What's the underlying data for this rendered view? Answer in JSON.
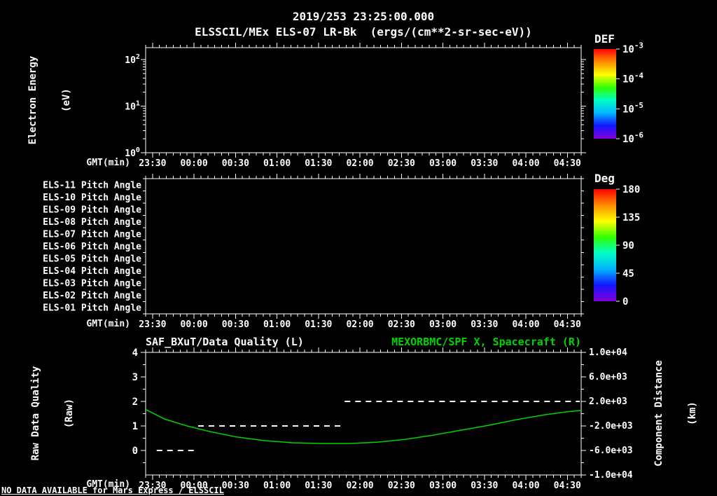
{
  "header": {
    "timestamp": "2019/253 23:25:00.000",
    "title": "ELSSCIL/MEx ELS-07 LR-Bk  (ergs/(cm**2-sr-sec-eV))"
  },
  "footer": {
    "message": "NO DATA AVAILABLE for Mars Express / ELSSCIL"
  },
  "colors": {
    "background": "#000000",
    "foreground": "#ffffff",
    "green": "#00d400",
    "rainbow_top_to_bottom": [
      "#ff0000",
      "#ff8c00",
      "#ffff00",
      "#30ff00",
      "#00ffc8",
      "#00b4ff",
      "#1414ff",
      "#8200dc"
    ]
  },
  "time_axis": {
    "label": "GMT(min)",
    "range_minutes": [
      0,
      315
    ],
    "minor_tick_step_minutes": 5,
    "major_ticks_minutes": [
      5,
      35,
      65,
      95,
      125,
      155,
      185,
      215,
      245,
      275,
      305
    ],
    "major_tick_labels": [
      "23:30",
      "00:00",
      "00:30",
      "01:00",
      "01:30",
      "02:00",
      "02:30",
      "03:00",
      "03:30",
      "04:00",
      "04:30"
    ]
  },
  "chart_data": [
    {
      "type": "heatmap",
      "name": "energy_spectrogram",
      "title": "ELSSCIL/MEx ELS-07 LR-Bk (ergs/(cm**2-sr-sec-eV))",
      "xlabel": "GMT(min)",
      "ylabel_lines": [
        "Electron Energy",
        "(eV)"
      ],
      "y_scale": "log",
      "ylim": [
        1,
        180
      ],
      "yticks": [
        {
          "value": 1,
          "label": "10^0"
        },
        {
          "value": 10,
          "label": "10^1"
        },
        {
          "value": 100,
          "label": "10^2"
        }
      ],
      "colorbar": {
        "title": "DEF",
        "scale": "log",
        "tick_labels": [
          "10^-3",
          "10^-4",
          "10^-5",
          "10^-6"
        ]
      },
      "values": [],
      "note": "panel is empty - no data plotted"
    },
    {
      "type": "heatmap",
      "name": "pitch_angle_panels",
      "xlabel": "GMT(min)",
      "row_labels": [
        "ELS-11 Pitch Angle",
        "ELS-10 Pitch Angle",
        "ELS-09 Pitch Angle",
        "ELS-08 Pitch Angle",
        "ELS-07 Pitch Angle",
        "ELS-06 Pitch Angle",
        "ELS-05 Pitch Angle",
        "ELS-04 Pitch Angle",
        "ELS-03 Pitch Angle",
        "ELS-02 Pitch Angle",
        "ELS-01 Pitch Angle"
      ],
      "colorbar": {
        "title": "Deg",
        "tick_labels": [
          "180",
          "135",
          "90",
          "45",
          "0"
        ]
      },
      "values": [],
      "note": "panel is empty - no data plotted"
    },
    {
      "type": "line",
      "name": "quality_and_spacecraft_position",
      "title_left": "SAF_BXuT/Data Quality (L)",
      "title_right": "MEXORBMC/SPF X, Spacecraft (R)",
      "xlabel": "GMT(min)",
      "left_axis": {
        "label_lines": [
          "Raw Data Quality",
          "(Raw)"
        ],
        "ticks": [
          4,
          3,
          2,
          1,
          0
        ],
        "lim": [
          -1,
          4
        ]
      },
      "right_axis": {
        "label_lines": [
          "Component Distance",
          "(km)"
        ],
        "ticks": [
          {
            "value": 10000,
            "label": "1.0e+04"
          },
          {
            "value": 6000,
            "label": "6.0e+03"
          },
          {
            "value": 2000,
            "label": "2.0e+03"
          },
          {
            "value": -2000,
            "label": "-2.0e+03"
          },
          {
            "value": -6000,
            "label": "-6.0e+03"
          },
          {
            "value": -10000,
            "label": "-1.0e+04"
          }
        ],
        "lim": [
          -10000,
          10000
        ]
      },
      "series": [
        {
          "name": "MEXORBMC/SPF X, Spacecraft",
          "axis": "right",
          "color": "#00d400",
          "line_style": "solid",
          "points_min_km": [
            [
              0,
              700
            ],
            [
              14,
              -900
            ],
            [
              30,
              -2000
            ],
            [
              46,
              -2900
            ],
            [
              66,
              -3800
            ],
            [
              86,
              -4400
            ],
            [
              106,
              -4740
            ],
            [
              127,
              -4860
            ],
            [
              148,
              -4860
            ],
            [
              168,
              -4640
            ],
            [
              188,
              -4180
            ],
            [
              208,
              -3500
            ],
            [
              228,
              -2700
            ],
            [
              248,
              -1900
            ],
            [
              268,
              -980
            ],
            [
              288,
              -200
            ],
            [
              304,
              280
            ],
            [
              315,
              550
            ]
          ]
        },
        {
          "name": "SAF_BXuT/Data Quality",
          "axis": "left",
          "color": "#ffffff",
          "line_style": "dashed",
          "segments": [
            {
              "from_min": 8,
              "to_min": 37,
              "value": 0
            },
            {
              "from_min": 38,
              "to_min": 143,
              "value": 1
            },
            {
              "from_min": 144,
              "to_min": 314,
              "value": 2
            }
          ]
        }
      ]
    }
  ]
}
